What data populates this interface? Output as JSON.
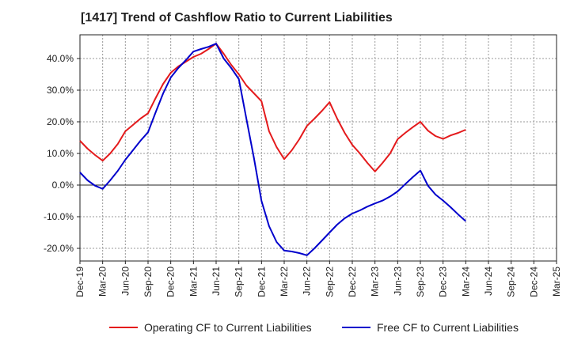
{
  "chart_data": {
    "type": "line",
    "title": "[1417]  Trend of Cashflow Ratio to Current Liabilities",
    "x": [
      "Dec-19",
      "Jan-20",
      "Feb-20",
      "Mar-20",
      "Apr-20",
      "May-20",
      "Jun-20",
      "Jul-20",
      "Aug-20",
      "Sep-20",
      "Oct-20",
      "Nov-20",
      "Dec-20",
      "Jan-21",
      "Feb-21",
      "Mar-21",
      "Apr-21",
      "May-21",
      "Jun-21",
      "Jul-21",
      "Aug-21",
      "Sep-21",
      "Oct-21",
      "Nov-21",
      "Dec-21",
      "Jan-22",
      "Feb-22",
      "Mar-22",
      "Apr-22",
      "May-22",
      "Jun-22",
      "Jul-22",
      "Aug-22",
      "Sep-22",
      "Oct-22",
      "Nov-22",
      "Dec-22",
      "Jan-23",
      "Feb-23",
      "Mar-23",
      "Apr-23",
      "May-23",
      "Jun-23",
      "Jul-23",
      "Aug-23",
      "Sep-23",
      "Oct-23",
      "Nov-23",
      "Dec-23",
      "Jan-24",
      "Feb-24",
      "Mar-24"
    ],
    "x_ticks": [
      "Dec-19",
      "Mar-20",
      "Jun-20",
      "Sep-20",
      "Dec-20",
      "Mar-21",
      "Jun-21",
      "Sep-21",
      "Dec-21",
      "Mar-22",
      "Jun-22",
      "Sep-22",
      "Dec-22",
      "Mar-23",
      "Jun-23",
      "Sep-23",
      "Dec-23",
      "Mar-24",
      "Jun-24",
      "Sep-24",
      "Dec-24",
      "Mar-25"
    ],
    "y_ticks": [
      "-20.0%",
      "-10.0%",
      "0.0%",
      "10.0%",
      "20.0%",
      "30.0%",
      "40.0%"
    ],
    "y_tick_values": [
      -20,
      -10,
      0,
      10,
      20,
      30,
      40
    ],
    "ylim": [
      -24,
      47.5
    ],
    "grid": true,
    "legend_position": "bottom",
    "series": [
      {
        "name": "Operating CF to Current Liabilities",
        "color": "#e41a1c",
        "values": [
          14.0,
          11.5,
          9.5,
          7.7,
          10.0,
          13.0,
          17.0,
          19.0,
          21.0,
          22.7,
          27.5,
          32.0,
          35.5,
          37.5,
          39.0,
          40.5,
          41.5,
          43.0,
          44.7,
          41.5,
          38.0,
          35.0,
          31.5,
          29.0,
          26.5,
          17.0,
          12.0,
          8.2,
          11.0,
          14.5,
          18.7,
          21.0,
          23.5,
          26.2,
          21.0,
          16.5,
          12.7,
          10.0,
          7.0,
          4.3,
          7.0,
          10.0,
          14.5,
          16.5,
          18.3,
          20.0,
          17.2,
          15.5,
          14.6,
          15.7,
          16.5,
          17.5
        ]
      },
      {
        "name": "Free CF to Current Liabilities",
        "color": "#0000cc",
        "values": [
          4.0,
          1.5,
          -0.2,
          -1.2,
          1.5,
          4.5,
          8.0,
          11.0,
          14.0,
          16.7,
          23.0,
          29.0,
          34.0,
          37.0,
          39.5,
          42.2,
          43.0,
          43.7,
          44.7,
          40.0,
          37.0,
          33.5,
          21.0,
          8.5,
          -5.0,
          -13.0,
          -18.0,
          -20.7,
          -21.0,
          -21.5,
          -22.2,
          -20.0,
          -17.5,
          -15.0,
          -12.5,
          -10.5,
          -9.0,
          -8.0,
          -6.8,
          -5.8,
          -4.9,
          -3.6,
          -2.0,
          0.3,
          2.5,
          4.6,
          -0.2,
          -3.0,
          -4.9,
          -7.0,
          -9.3,
          -11.4
        ]
      }
    ]
  }
}
